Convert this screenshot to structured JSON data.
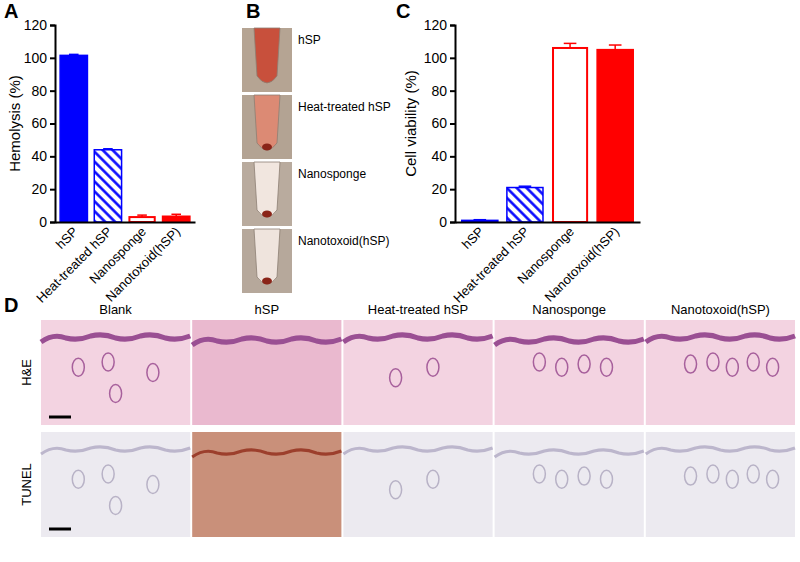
{
  "chart_data": [
    {
      "type": "bar",
      "title": "A",
      "y_label": "Hemolysis (%)",
      "categories": [
        "hSP",
        "Heat-treated hSP",
        "Nanosponge",
        "Nanotoxoid(hSP)"
      ],
      "values": [
        101.5,
        44,
        3,
        3.5
      ],
      "errors": [
        0.6,
        0.6,
        1.2,
        1.2
      ],
      "colors": [
        "#0000ff",
        "#0000ff",
        "#ff0000",
        "#ff0000"
      ],
      "ylim": [
        0,
        120
      ],
      "yticks": [
        0,
        20,
        40,
        60,
        80,
        100,
        120
      ]
    },
    {
      "type": "bar",
      "title": "C",
      "y_label": "Cell viability (%)",
      "categories": [
        "hSP",
        "Heat-treated hSP",
        "Nanosponge",
        "Nanotoxoid(hSP)"
      ],
      "values": [
        1,
        21,
        106,
        105
      ],
      "errors": [
        0.4,
        0.8,
        2.8,
        2.8
      ],
      "colors": [
        "#0000ff",
        "#0000ff",
        "#ff0000",
        "#ff0000"
      ],
      "ylim": [
        0,
        120
      ],
      "yticks": [
        0,
        20,
        40,
        60,
        80,
        100,
        120
      ]
    }
  ],
  "photo": {
    "label": "B",
    "tubes": [
      "hSP",
      "Heat-treated hSP",
      "Nanosponge",
      "Nanotoxoid(hSP)"
    ]
  },
  "histology": {
    "label": "D",
    "columns": [
      "Blank",
      "hSP",
      "Heat-treated hSP",
      "Nanosponge",
      "Nanotoxoid(hSP)"
    ],
    "rows": [
      "H&E",
      "TUNEL"
    ]
  }
}
